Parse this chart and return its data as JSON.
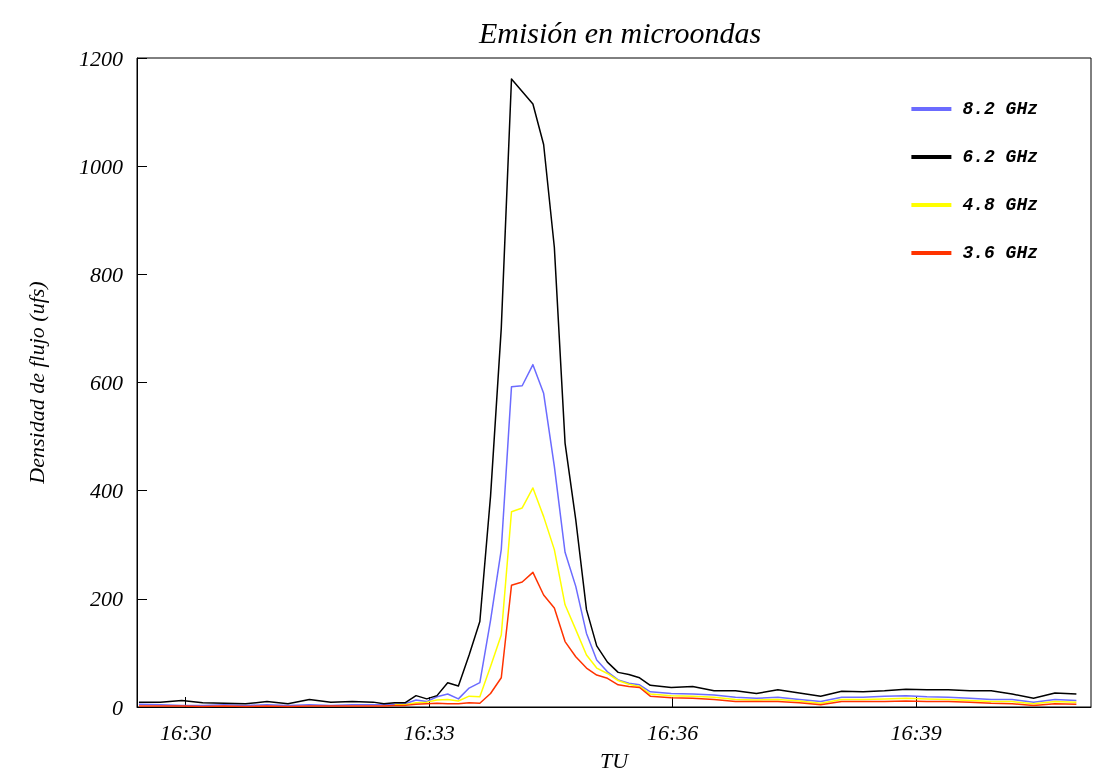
{
  "chart_data": {
    "type": "line",
    "title": "Emisión en microondas",
    "xlabel": "TU",
    "ylabel": "Densidad de flujo (ufs)",
    "x": [
      16.4904,
      16.4948,
      16.4992,
      16.5035,
      16.5079,
      16.5123,
      16.5167,
      16.521,
      16.5254,
      16.5298,
      16.5342,
      16.5385,
      16.5407,
      16.5429,
      16.5451,
      16.5473,
      16.5495,
      16.5516,
      16.5538,
      16.556,
      16.5582,
      16.5604,
      16.5626,
      16.5648,
      16.5669,
      16.5691,
      16.5713,
      16.5735,
      16.5757,
      16.5779,
      16.5801,
      16.5823,
      16.5844,
      16.5866,
      16.5888,
      16.591,
      16.5932,
      16.5954,
      16.5997,
      16.6041,
      16.6085,
      16.6129,
      16.6172,
      16.6216,
      16.626,
      16.6304,
      16.6347,
      16.6391,
      16.6435,
      16.6479,
      16.6522,
      16.6566,
      16.661,
      16.6654,
      16.6697,
      16.6741,
      16.6785,
      16.6829
    ],
    "series": [
      {
        "name": "8.2 GHz",
        "color": "#6b6bff",
        "values": [
          5,
          4,
          3,
          3,
          4,
          3,
          4,
          3,
          4,
          3,
          4,
          4,
          4,
          5,
          6,
          13,
          10,
          19,
          24,
          15,
          35,
          45,
          160,
          291,
          592,
          594,
          633,
          580,
          445,
          286,
          223,
          136,
          87,
          65,
          50,
          44,
          41,
          28,
          25,
          24,
          22,
          18,
          16,
          18,
          14,
          10,
          18,
          18,
          20,
          21,
          19,
          18,
          16,
          14,
          14,
          9,
          14,
          12
        ]
      },
      {
        "name": "6.2 GHz",
        "color": "#000000",
        "values": [
          9,
          9,
          12,
          8,
          7,
          6,
          10,
          6,
          14,
          9,
          10,
          9,
          6,
          8,
          8,
          21,
          15,
          21,
          45,
          39,
          96,
          158,
          390,
          700,
          1161,
          1138,
          1115,
          1040,
          850,
          488,
          346,
          180,
          113,
          83,
          64,
          60,
          54,
          40,
          36,
          38,
          30,
          30,
          25,
          32,
          26,
          20,
          29,
          28,
          30,
          33,
          32,
          32,
          30,
          30,
          24,
          16,
          26,
          24
        ]
      },
      {
        "name": "4.8 GHz",
        "color": "#ffff00",
        "values": [
          null,
          null,
          null,
          null,
          null,
          null,
          null,
          null,
          null,
          null,
          null,
          null,
          null,
          4,
          4,
          8,
          9,
          13,
          14,
          11,
          20,
          19,
          75,
          133,
          361,
          368,
          405,
          352,
          291,
          189,
          143,
          96,
          72,
          62,
          49,
          42,
          38,
          24,
          21,
          20,
          18,
          14,
          13,
          14,
          11,
          7,
          14,
          14,
          15,
          16,
          15,
          14,
          12,
          10,
          10,
          6,
          10,
          9
        ]
      },
      {
        "name": "3.6 GHz",
        "color": "#ff3300",
        "values": [
          2,
          2,
          2,
          1,
          2,
          1,
          2,
          1,
          2,
          2,
          2,
          2,
          2,
          3,
          3,
          5,
          6,
          7,
          6,
          6,
          8,
          7,
          25,
          54,
          225,
          231,
          249,
          207,
          183,
          121,
          93,
          72,
          59,
          53,
          41,
          38,
          36,
          20,
          17,
          16,
          14,
          10,
          10,
          10,
          8,
          4,
          10,
          10,
          10,
          11,
          10,
          10,
          9,
          7,
          6,
          3,
          6,
          5
        ]
      }
    ],
    "xlim": [
      16.49,
      16.6859
    ],
    "xticks": [
      {
        "value": 16.5,
        "label": "16:30"
      },
      {
        "value": 16.55,
        "label": "16:33"
      },
      {
        "value": 16.6,
        "label": "16:36"
      },
      {
        "value": 16.65,
        "label": "16:39"
      }
    ],
    "ylim": [
      0,
      1200
    ],
    "yticks": [
      0,
      200,
      400,
      600,
      800,
      1000,
      1200
    ],
    "grid": false,
    "legend": "top right",
    "marker": "none",
    "line_style": "solid"
  }
}
